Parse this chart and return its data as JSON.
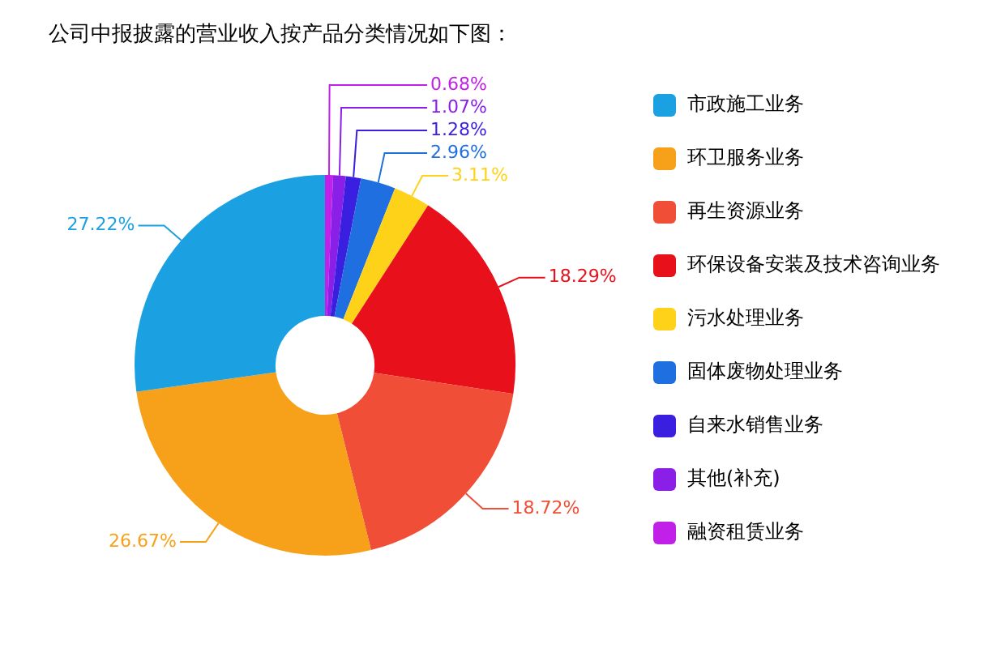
{
  "chart_data": {
    "type": "donut",
    "title": "公司中报披露的营业收入按产品分类情况如下图：",
    "categories": [
      "市政施工业务",
      "环卫服务业务",
      "再生资源业务",
      "环保设备安装及技术咨询业务",
      "污水处理业务",
      "固体废物处理业务",
      "自来水销售业务",
      "其他(补充)",
      "融资租赁业务"
    ],
    "values": [
      27.22,
      26.67,
      18.72,
      18.29,
      3.11,
      2.96,
      1.28,
      1.07,
      0.68
    ],
    "colors": [
      "#1ba1e2",
      "#f7a11a",
      "#f04e37",
      "#e8111b",
      "#ffd21a",
      "#1f6fe0",
      "#3a1fe0",
      "#8a1fe8",
      "#c020e8"
    ],
    "value_labels": [
      "27.22%",
      "26.67%",
      "18.72%",
      "18.29%",
      "3.11%",
      "2.96%",
      "1.28%",
      "1.07%",
      "0.68%"
    ],
    "legend": "right"
  }
}
